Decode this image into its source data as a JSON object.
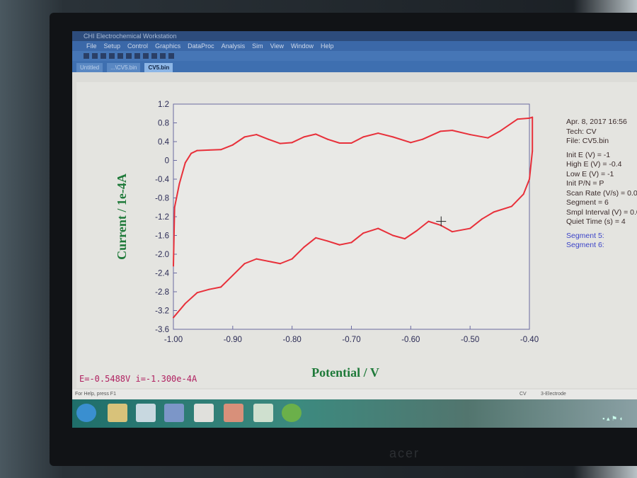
{
  "window": {
    "title": "CHI Electrochemical Workstation",
    "menu": [
      "File",
      "Setup",
      "Control",
      "Graphics",
      "DataProc",
      "Analysis",
      "Sim",
      "View",
      "Window",
      "Help"
    ],
    "tabs": [
      {
        "label": "Untitled"
      },
      {
        "label": "...\\CV5.bin"
      },
      {
        "label": "CV5.bin",
        "active": true
      }
    ]
  },
  "info": {
    "date": "Apr. 8, 2017   16:56",
    "tech": "Tech: CV",
    "file": "File: CV5.bin",
    "params": [
      "Init E (V) = -1",
      "High E (V) = -0.4",
      "Low E (V) = -1",
      "Init P/N = P",
      "Scan Rate (V/s) = 0.0",
      "Segment = 6",
      "Smpl Interval (V) = 0.0",
      "Quiet Time (s) = 4"
    ],
    "segments": [
      "Segment 5:",
      "Segment 6:"
    ]
  },
  "readout": "E=-0.5488V   i=-1.300e-4A",
  "status": {
    "help": "For Help, press F1",
    "mode": "CV",
    "electrode": "3-Electrode"
  },
  "brand": "acer",
  "chart_data": {
    "type": "line",
    "xlabel": "Potential / V",
    "ylabel": "Current / 1e-4A",
    "xlim": [
      -1.0,
      -0.4
    ],
    "ylim": [
      -3.6,
      1.2
    ],
    "x_reversed": false,
    "xticks": [
      "-1.00",
      "-0.90",
      "-0.80",
      "-0.70",
      "-0.60",
      "-0.50",
      "-0.40"
    ],
    "yticks": [
      "1.2",
      "0.8",
      "0.4",
      "0",
      "-0.4",
      "-0.8",
      "-1.2",
      "-1.6",
      "-2.0",
      "-2.4",
      "-2.8",
      "-3.2",
      "-3.6"
    ],
    "grid": false,
    "color": "#e8303a",
    "cursor": {
      "x": -0.5488,
      "y": -1.3
    },
    "series": [
      {
        "points": [
          [
            -1.0,
            -2.25
          ],
          [
            -0.998,
            -1.0
          ],
          [
            -0.99,
            -0.5
          ],
          [
            -0.98,
            -0.05
          ],
          [
            -0.97,
            0.15
          ],
          [
            -0.96,
            0.21
          ],
          [
            -0.94,
            0.22
          ],
          [
            -0.92,
            0.23
          ],
          [
            -0.9,
            0.33
          ],
          [
            -0.88,
            0.5
          ],
          [
            -0.86,
            0.55
          ],
          [
            -0.84,
            0.45
          ],
          [
            -0.82,
            0.36
          ],
          [
            -0.8,
            0.38
          ],
          [
            -0.78,
            0.5
          ],
          [
            -0.76,
            0.56
          ],
          [
            -0.74,
            0.45
          ],
          [
            -0.72,
            0.37
          ],
          [
            -0.7,
            0.37
          ],
          [
            -0.68,
            0.5
          ],
          [
            -0.655,
            0.58
          ],
          [
            -0.63,
            0.5
          ],
          [
            -0.6,
            0.38
          ],
          [
            -0.58,
            0.45
          ],
          [
            -0.55,
            0.62
          ],
          [
            -0.53,
            0.64
          ],
          [
            -0.5,
            0.55
          ],
          [
            -0.47,
            0.48
          ],
          [
            -0.45,
            0.62
          ],
          [
            -0.42,
            0.88
          ],
          [
            -0.4,
            0.9
          ],
          [
            -0.395,
            0.92
          ],
          [
            -0.395,
            0.2
          ],
          [
            -0.4,
            -0.4
          ],
          [
            -0.41,
            -0.72
          ],
          [
            -0.43,
            -0.98
          ],
          [
            -0.46,
            -1.1
          ],
          [
            -0.48,
            -1.25
          ],
          [
            -0.5,
            -1.45
          ],
          [
            -0.53,
            -1.52
          ],
          [
            -0.55,
            -1.38
          ],
          [
            -0.57,
            -1.3
          ],
          [
            -0.59,
            -1.5
          ],
          [
            -0.61,
            -1.67
          ],
          [
            -0.63,
            -1.6
          ],
          [
            -0.655,
            -1.45
          ],
          [
            -0.68,
            -1.55
          ],
          [
            -0.7,
            -1.75
          ],
          [
            -0.72,
            -1.8
          ],
          [
            -0.74,
            -1.72
          ],
          [
            -0.76,
            -1.65
          ],
          [
            -0.78,
            -1.85
          ],
          [
            -0.8,
            -2.1
          ],
          [
            -0.82,
            -2.2
          ],
          [
            -0.84,
            -2.15
          ],
          [
            -0.86,
            -2.1
          ],
          [
            -0.88,
            -2.2
          ],
          [
            -0.9,
            -2.45
          ],
          [
            -0.92,
            -2.7
          ],
          [
            -0.94,
            -2.75
          ],
          [
            -0.96,
            -2.82
          ],
          [
            -0.98,
            -3.05
          ],
          [
            -1.0,
            -3.35
          ]
        ]
      }
    ]
  }
}
